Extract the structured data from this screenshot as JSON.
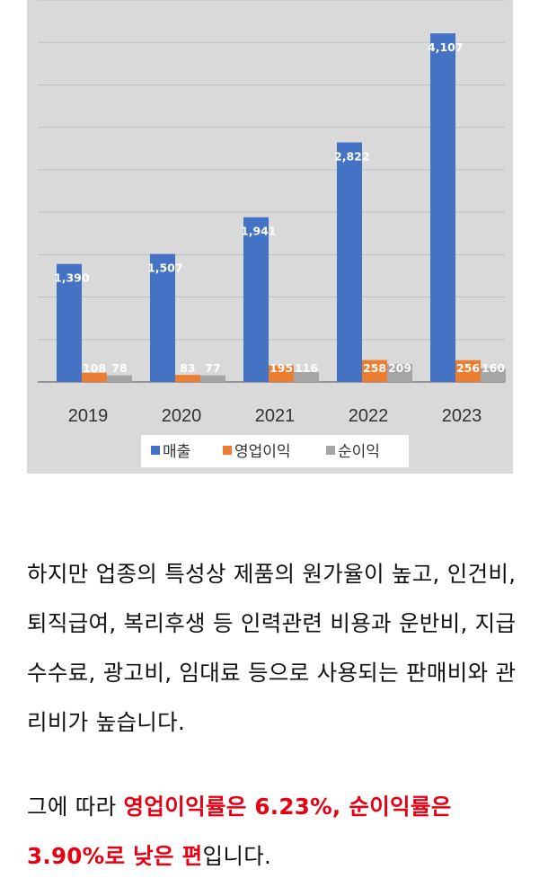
{
  "chart_data": {
    "type": "bar",
    "categories": [
      "2019",
      "2020",
      "2021",
      "2022",
      "2023"
    ],
    "series": [
      {
        "name": "매출",
        "values": [
          1390,
          1507,
          1941,
          2822,
          4107
        ],
        "labels": [
          "1,390",
          "1,507",
          "1,941",
          "2,822",
          "4,107"
        ],
        "color": "#4472c4"
      },
      {
        "name": "영업이익",
        "values": [
          108,
          83,
          195,
          258,
          256
        ],
        "labels": [
          "108",
          "83",
          "195",
          "258",
          "256"
        ],
        "color": "#ed7d31"
      },
      {
        "name": "순이익",
        "values": [
          78,
          77,
          116,
          209,
          160
        ],
        "labels": [
          "78",
          "77",
          "116",
          "209",
          "160"
        ],
        "color": "#a5a5a5"
      }
    ],
    "ylim": [
      0,
      4500
    ],
    "gridlines": true,
    "legend_position": "bottom"
  },
  "article": {
    "paragraph1": "하지만 업종의 특성상 제품의 원가율이 높고, 인건비, 퇴직급여, 복리후생 등 인력관련 비용과 운반비, 지급수수료, 광고비, 임대료 등으로 사용되는 판매비와 관리비가 높습니다.",
    "p2_plain_start": "그에 따라 ",
    "p2_red": "영업이익률은 6.23%, 순이익률은 3.90%로 낮은 편",
    "p2_plain_end": "입니다."
  }
}
